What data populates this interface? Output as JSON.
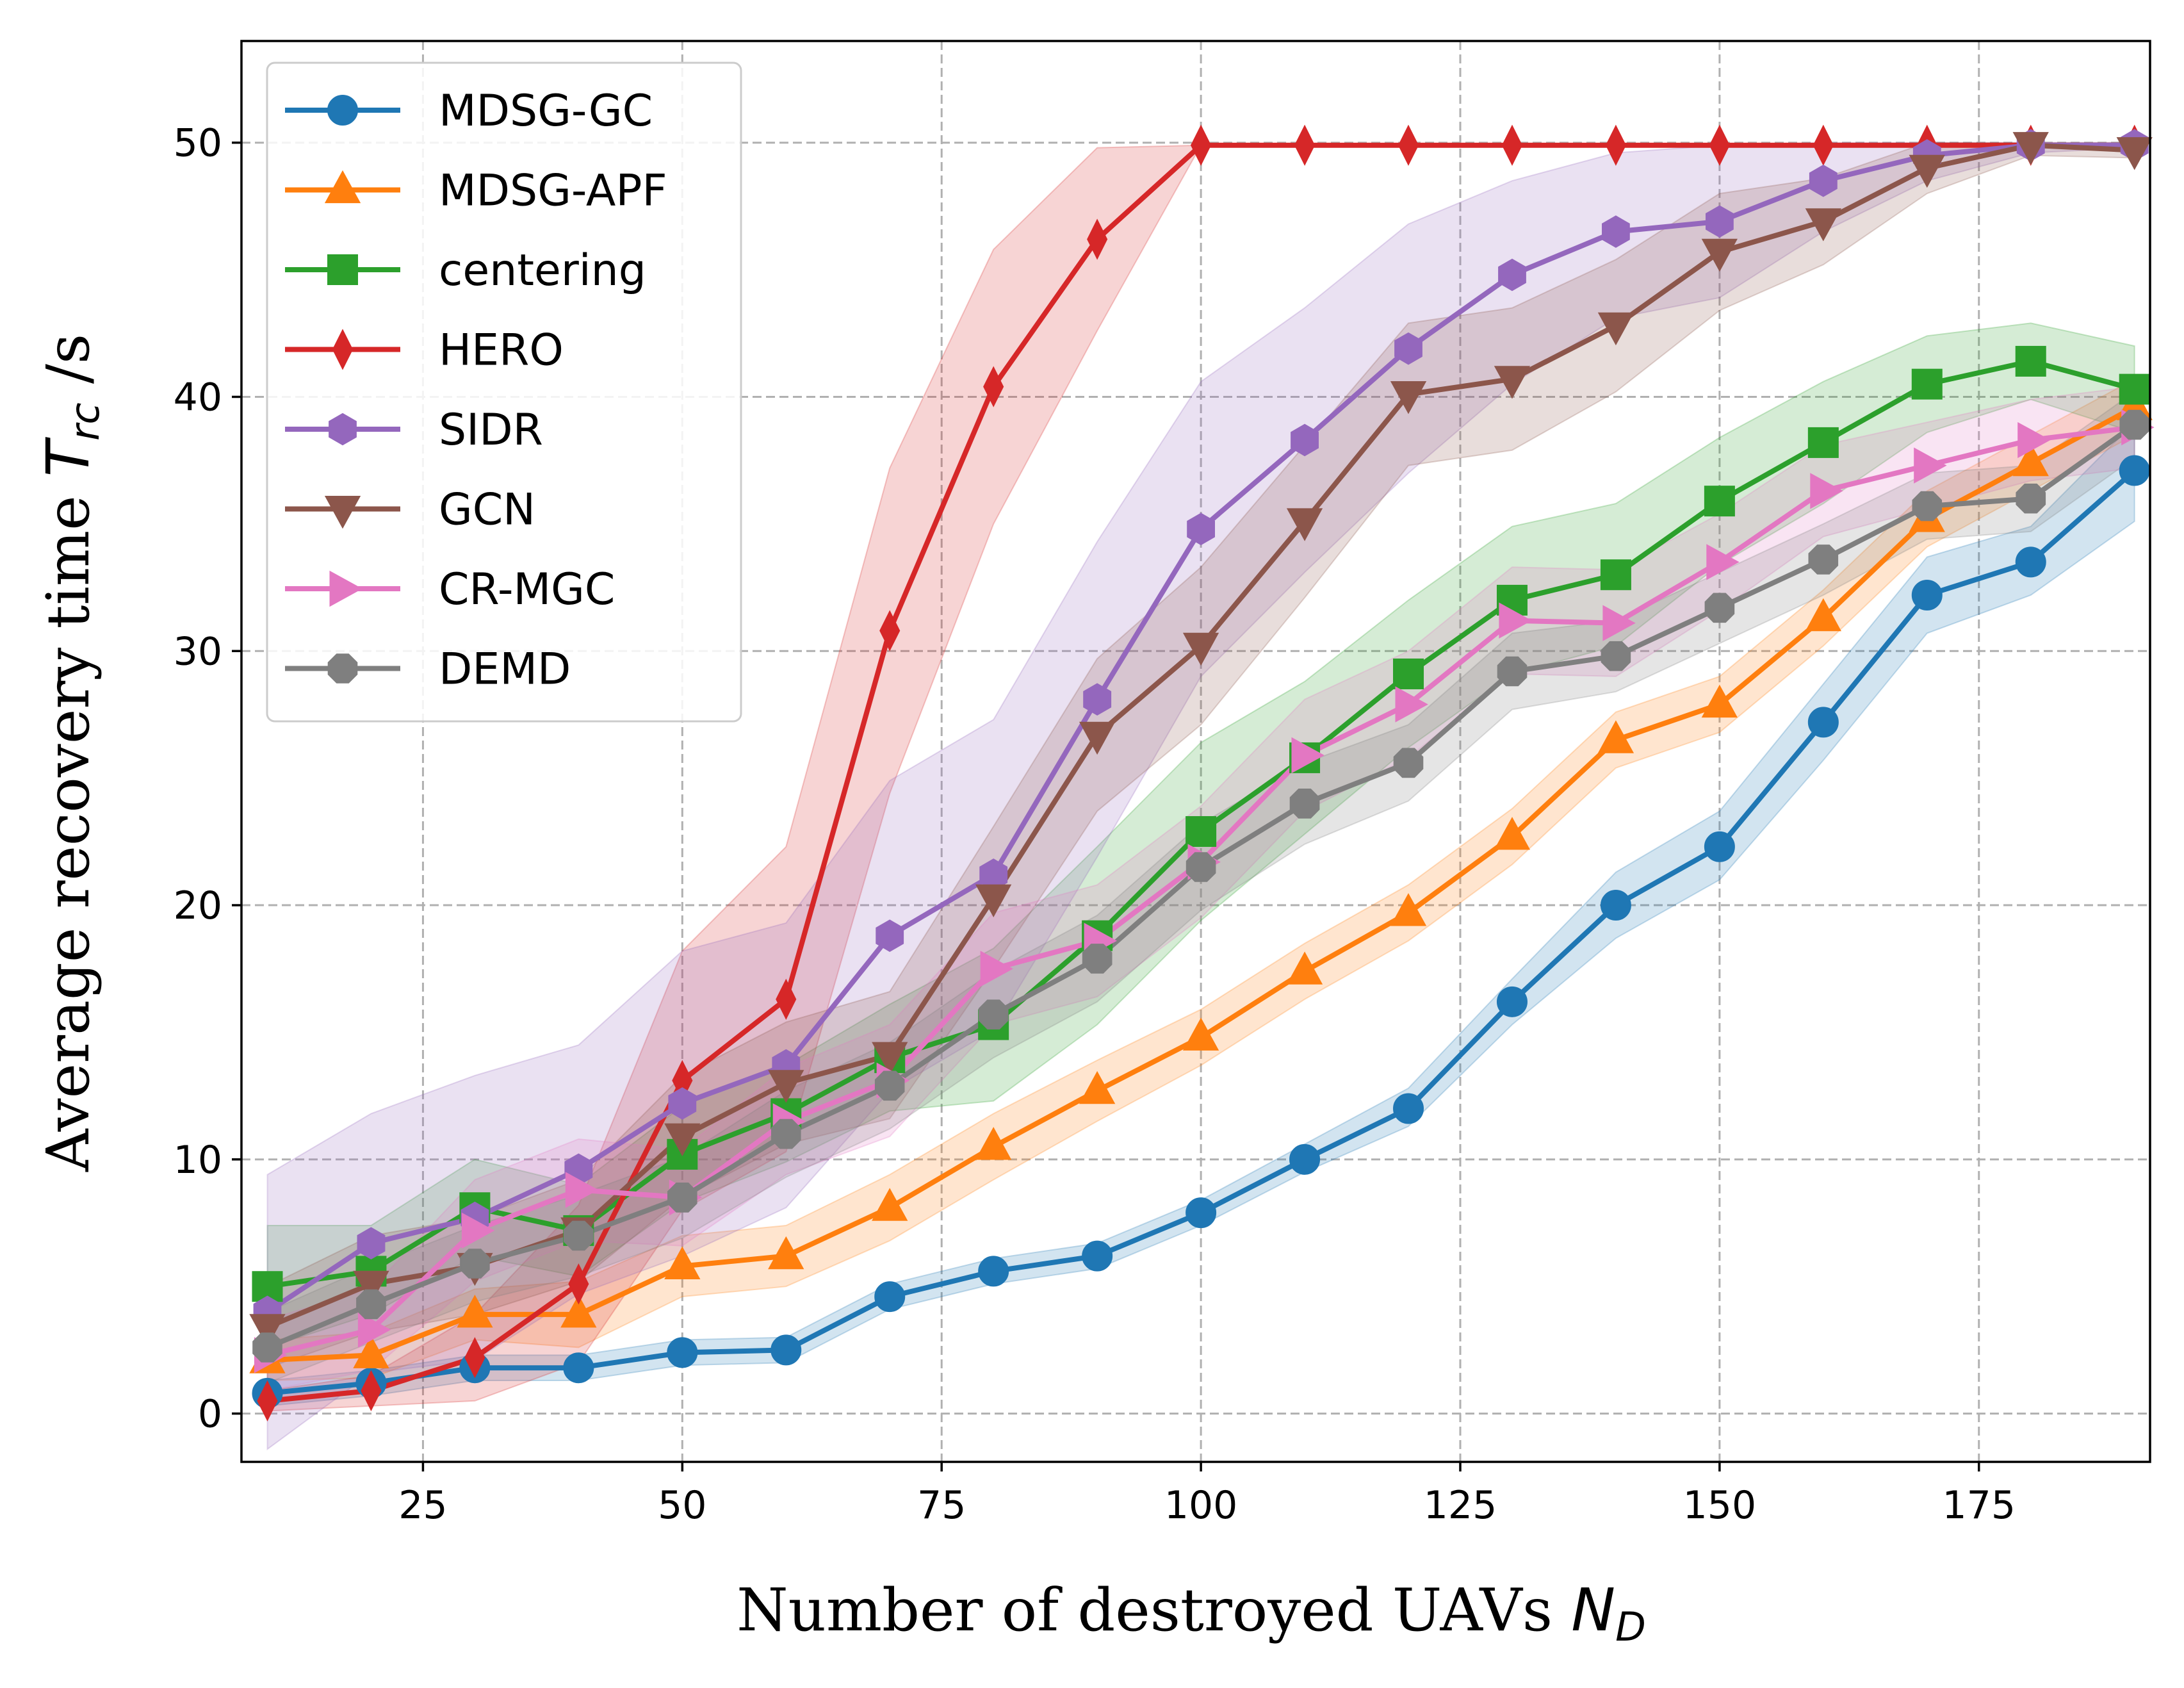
{
  "chart_data": {
    "type": "line",
    "title": "",
    "xlabel": {
      "text": "Number of destroyed UAVs ",
      "symbol": "N",
      "sub": "D"
    },
    "ylabel": {
      "text": "Average recovery time ",
      "symbol": "T",
      "sub": "rc",
      "unit": " /s"
    },
    "xlim": [
      7.5,
      191.5
    ],
    "ylim": [
      -1.9,
      54.0
    ],
    "xticks": [
      25,
      50,
      75,
      100,
      125,
      150,
      175
    ],
    "yticks": [
      0,
      10,
      20,
      30,
      40,
      50
    ],
    "grid": true,
    "legend": "top-left",
    "x": [
      10,
      20,
      30,
      40,
      50,
      60,
      70,
      80,
      90,
      100,
      110,
      120,
      130,
      140,
      150,
      160,
      170,
      180,
      190
    ],
    "series": [
      {
        "name": "MDSG-GC",
        "color": "#1f77b4",
        "marker": "circle",
        "values": [
          0.8,
          1.2,
          1.8,
          1.8,
          2.4,
          2.5,
          4.6,
          5.6,
          6.2,
          7.9,
          10.0,
          12.0,
          16.2,
          20.0,
          22.3,
          27.2,
          32.2,
          33.5,
          37.1
        ],
        "lower": [
          0.3,
          0.7,
          1.3,
          1.3,
          1.9,
          2.0,
          4.1,
          5.1,
          5.7,
          7.4,
          9.5,
          11.3,
          15.3,
          18.7,
          21.0,
          25.7,
          30.7,
          32.2,
          35.1
        ],
        "upper": [
          1.3,
          1.7,
          2.3,
          2.3,
          2.9,
          3.0,
          5.1,
          6.1,
          6.7,
          8.4,
          10.6,
          12.8,
          17.1,
          21.3,
          23.7,
          28.7,
          33.7,
          34.9,
          39.0
        ]
      },
      {
        "name": "MDSG-APF",
        "color": "#ff7f0e",
        "marker": "triangle-up",
        "values": [
          2.1,
          2.3,
          3.9,
          3.9,
          5.8,
          6.2,
          8.1,
          10.5,
          12.7,
          14.8,
          17.4,
          19.7,
          22.7,
          26.5,
          27.9,
          31.3,
          35.2,
          37.4,
          39.6
        ],
        "lower": [
          1.3,
          1.4,
          2.9,
          2.6,
          4.6,
          5.0,
          6.8,
          9.2,
          11.5,
          13.7,
          16.3,
          18.6,
          21.6,
          25.4,
          26.8,
          30.2,
          34.1,
          36.3,
          38.5
        ],
        "upper": [
          2.9,
          3.2,
          4.9,
          5.2,
          7.0,
          7.4,
          9.4,
          11.8,
          13.9,
          15.9,
          18.5,
          20.8,
          23.8,
          27.6,
          29.0,
          32.4,
          36.3,
          38.5,
          40.7
        ]
      },
      {
        "name": "centering",
        "color": "#2ca02c",
        "marker": "square",
        "values": [
          5.0,
          5.6,
          8.1,
          7.2,
          10.2,
          11.8,
          14.0,
          15.3,
          18.8,
          22.9,
          25.8,
          29.1,
          32.0,
          33.0,
          35.9,
          38.2,
          40.5,
          41.4,
          40.3
        ],
        "lower": [
          2.6,
          3.9,
          6.2,
          5.4,
          8.3,
          9.9,
          11.9,
          12.3,
          15.3,
          19.4,
          22.8,
          26.2,
          29.1,
          30.2,
          33.4,
          35.8,
          38.6,
          39.9,
          38.6
        ],
        "upper": [
          7.4,
          7.4,
          10.0,
          9.0,
          12.1,
          13.7,
          16.1,
          18.3,
          22.3,
          26.4,
          28.8,
          32.0,
          34.9,
          35.8,
          38.4,
          40.6,
          42.4,
          42.9,
          42.0
        ]
      },
      {
        "name": "HERO",
        "color": "#d62728",
        "marker": "thin-diamond",
        "values": [
          0.5,
          0.9,
          2.2,
          5.1,
          13.1,
          16.3,
          30.8,
          40.4,
          46.2,
          49.9,
          49.9,
          49.9,
          49.9,
          49.9,
          49.9,
          49.9,
          49.9,
          49.9,
          49.9
        ],
        "lower": [
          0.1,
          0.3,
          0.5,
          2.0,
          8.0,
          10.3,
          24.4,
          35.0,
          42.6,
          49.9,
          49.9,
          49.9,
          49.9,
          49.9,
          49.9,
          49.9,
          49.9,
          49.9,
          49.9
        ],
        "upper": [
          0.9,
          1.5,
          3.9,
          8.2,
          18.2,
          22.3,
          37.2,
          45.8,
          49.8,
          49.9,
          49.9,
          49.9,
          49.9,
          49.9,
          49.9,
          49.9,
          49.9,
          49.9,
          49.9
        ]
      },
      {
        "name": "SIDR",
        "color": "#9467bd",
        "marker": "hexagon",
        "values": [
          4.0,
          6.7,
          7.7,
          9.6,
          12.2,
          13.7,
          18.8,
          21.2,
          28.1,
          34.8,
          38.3,
          41.9,
          44.8,
          46.5,
          46.9,
          48.5,
          49.5,
          49.9,
          49.9
        ],
        "lower": [
          -1.4,
          1.6,
          2.1,
          4.7,
          6.2,
          8.1,
          12.7,
          15.1,
          21.9,
          29.0,
          33.1,
          37.0,
          40.5,
          43.1,
          43.9,
          46.5,
          48.5,
          49.6,
          49.8
        ],
        "upper": [
          9.4,
          11.8,
          13.3,
          14.5,
          18.2,
          19.3,
          24.9,
          27.3,
          34.3,
          40.6,
          43.5,
          46.8,
          48.5,
          49.6,
          49.9,
          50.0,
          50.0,
          50.0,
          50.0
        ]
      },
      {
        "name": "GCN",
        "color": "#8c564b",
        "marker": "triangle-down",
        "values": [
          3.4,
          5.1,
          5.8,
          7.2,
          10.9,
          13.0,
          14.1,
          20.3,
          26.7,
          30.2,
          35.1,
          40.1,
          40.7,
          42.8,
          45.7,
          46.9,
          49.0,
          49.9,
          49.7
        ],
        "lower": [
          1.8,
          3.2,
          3.9,
          5.2,
          8.5,
          10.6,
          11.6,
          17.5,
          23.7,
          27.1,
          32.1,
          37.3,
          37.9,
          40.2,
          43.4,
          45.2,
          48.0,
          49.5,
          49.4
        ],
        "upper": [
          5.0,
          7.0,
          7.7,
          9.2,
          13.3,
          15.4,
          16.6,
          23.1,
          29.7,
          33.3,
          38.1,
          42.9,
          43.5,
          45.4,
          48.0,
          48.6,
          50.0,
          50.0,
          50.0
        ]
      },
      {
        "name": "CR-MGC",
        "color": "#e377c2",
        "marker": "triangle-right",
        "values": [
          2.3,
          3.3,
          7.2,
          8.8,
          8.5,
          11.5,
          13.1,
          17.5,
          18.6,
          21.7,
          25.9,
          27.9,
          31.2,
          31.1,
          33.5,
          36.3,
          37.3,
          38.3,
          38.8
        ],
        "lower": [
          0.9,
          1.7,
          5.2,
          6.8,
          6.6,
          9.4,
          10.9,
          15.3,
          16.4,
          19.5,
          23.7,
          25.8,
          29.1,
          29.0,
          31.6,
          34.5,
          35.6,
          36.7,
          37.2
        ],
        "upper": [
          3.7,
          4.9,
          9.2,
          10.8,
          10.4,
          13.6,
          15.3,
          19.7,
          20.8,
          23.9,
          28.1,
          30.0,
          33.3,
          33.2,
          35.4,
          38.1,
          39.0,
          39.9,
          40.4
        ]
      },
      {
        "name": "DEMD",
        "color": "#7f7f7f",
        "marker": "octagon",
        "values": [
          2.6,
          4.3,
          5.9,
          7.0,
          8.5,
          11.0,
          12.9,
          15.7,
          17.9,
          21.5,
          24.0,
          25.6,
          29.2,
          29.8,
          31.7,
          33.6,
          35.7,
          36.0,
          38.9
        ],
        "lower": [
          1.2,
          2.8,
          4.4,
          5.4,
          6.9,
          9.3,
          11.2,
          14.0,
          16.2,
          19.8,
          22.4,
          24.1,
          27.7,
          28.4,
          30.3,
          32.2,
          34.4,
          34.7,
          37.6
        ],
        "upper": [
          4.0,
          5.8,
          7.4,
          8.6,
          10.1,
          12.7,
          14.6,
          17.4,
          19.6,
          23.2,
          25.6,
          27.1,
          30.7,
          31.2,
          33.1,
          35.0,
          37.0,
          37.3,
          40.2
        ]
      }
    ]
  }
}
